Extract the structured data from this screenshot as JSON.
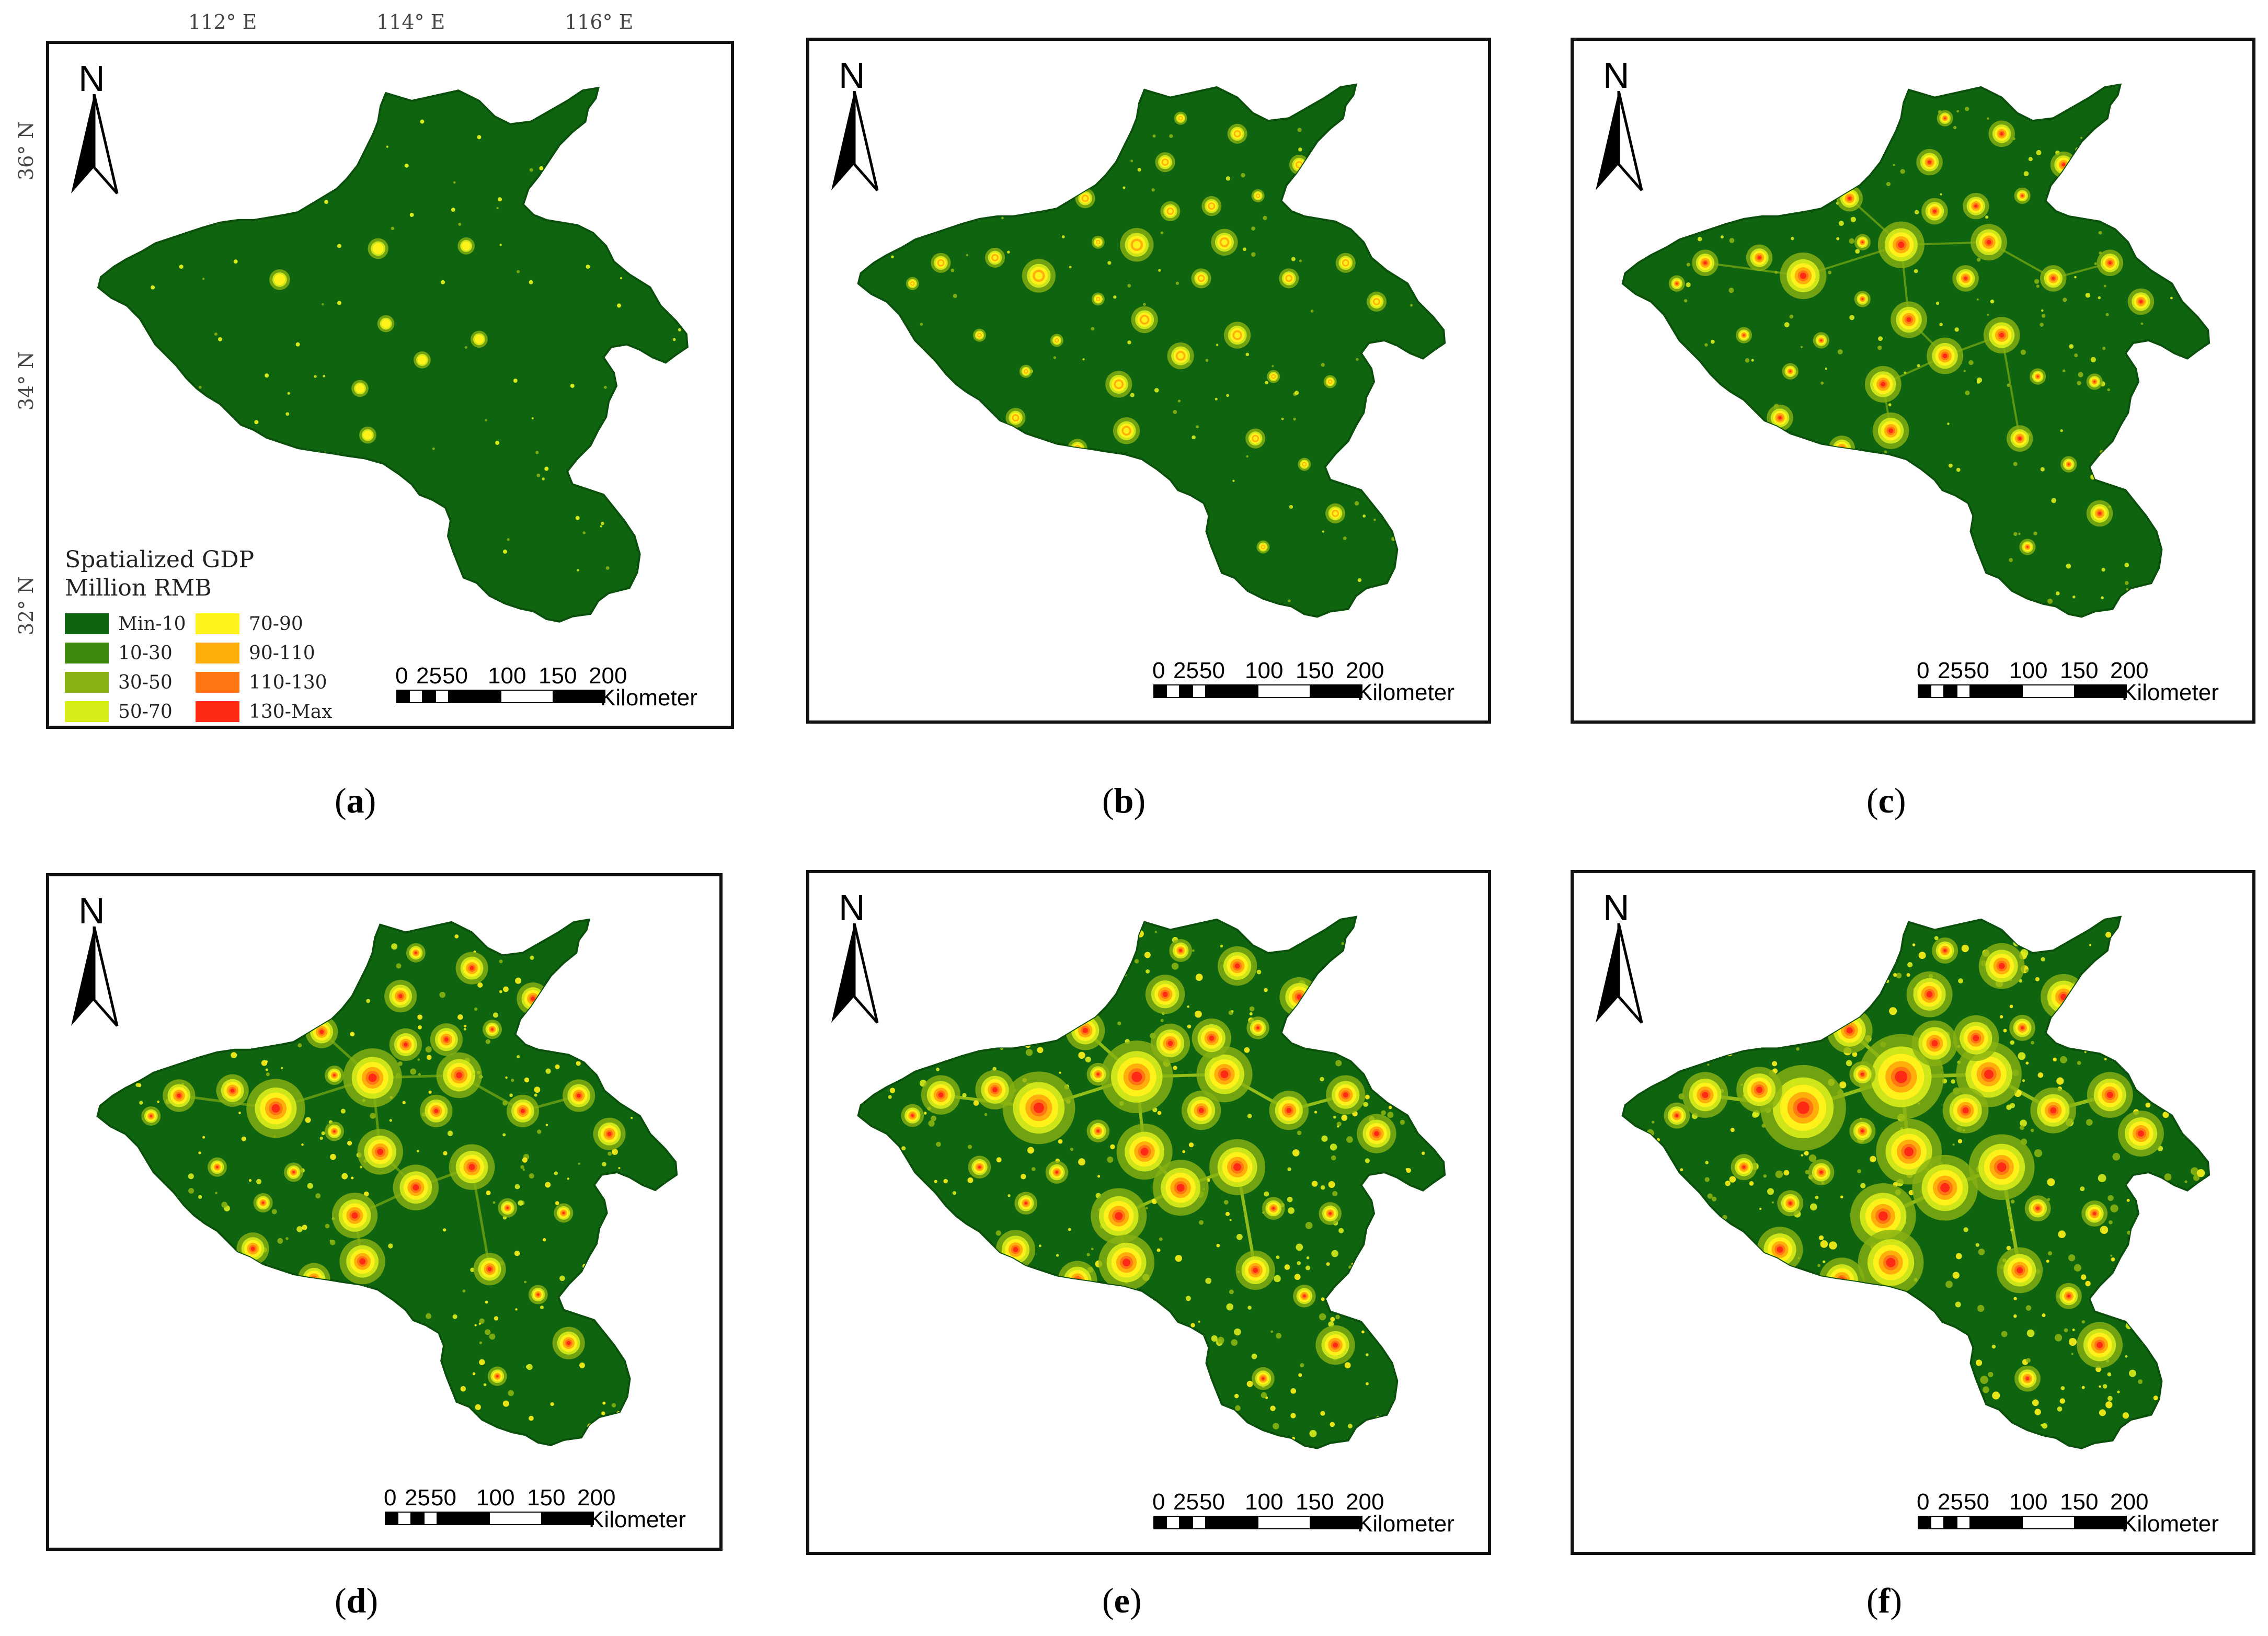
{
  "map": {
    "north_label": "N",
    "scale": {
      "ticks": [
        "0",
        "25",
        "50",
        "100",
        "150",
        "200"
      ],
      "unit": "Kilometer"
    },
    "coordinates": {
      "top": [
        "112° E",
        "114° E",
        "116° E"
      ],
      "left": [
        "36° N",
        "34° N",
        "32° N"
      ]
    },
    "legend": {
      "title_line1": "Spatialized GDP",
      "title_line2": "Million RMB",
      "classes": [
        {
          "label": "Min-10",
          "color": "#0f6410"
        },
        {
          "label": "10-30",
          "color": "#3d8a0f"
        },
        {
          "label": "30-50",
          "color": "#88b212"
        },
        {
          "label": "50-70",
          "color": "#d8ec1c"
        },
        {
          "label": "70-90",
          "color": "#fff21a"
        },
        {
          "label": "90-110",
          "color": "#ffae0c"
        },
        {
          "label": "110-130",
          "color": "#ff7612"
        },
        {
          "label": "130-Max",
          "color": "#ff2a16"
        }
      ]
    },
    "panels": [
      {
        "letter": "a",
        "intensity": 0
      },
      {
        "letter": "b",
        "intensity": 1
      },
      {
        "letter": "c",
        "intensity": 2
      },
      {
        "letter": "d",
        "intensity": 3
      },
      {
        "letter": "e",
        "intensity": 4
      },
      {
        "letter": "f",
        "intensity": 5
      }
    ]
  }
}
